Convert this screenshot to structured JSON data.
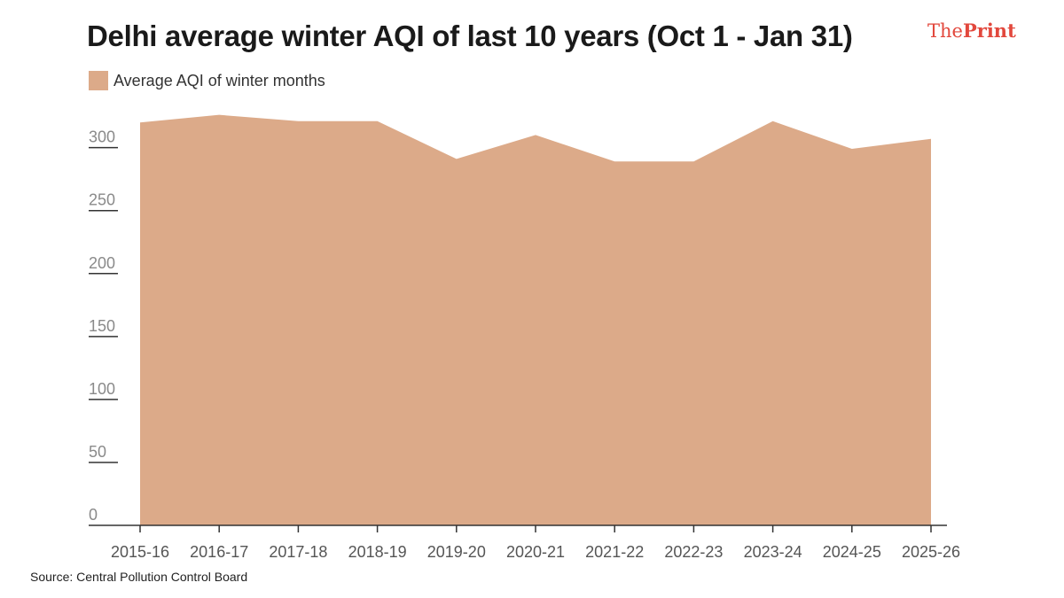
{
  "header": {
    "title": "Delhi average winter AQI of last 10 years (Oct 1 - Jan 31)",
    "logo_part1": "The",
    "logo_part2": "Print"
  },
  "footer": {
    "source": "Source: Central Pollution Control Board"
  },
  "colors": {
    "area_fill": "#dcaa89",
    "logo": "#e2483d",
    "axis": "#333333"
  },
  "chart_data": {
    "type": "area",
    "title": "Delhi average winter AQI of last 10 years (Oct 1 - Jan 31)",
    "xlabel": "",
    "ylabel": "",
    "categories": [
      "2015-16",
      "2016-17",
      "2017-18",
      "2018-19",
      "2019-20",
      "2020-21",
      "2021-22",
      "2022-23",
      "2023-24",
      "2024-25",
      "2025-26"
    ],
    "series": [
      {
        "name": "Average AQI of winter months",
        "values": [
          320,
          326,
          321,
          321,
          291,
          310,
          289,
          289,
          321,
          299,
          307
        ]
      }
    ],
    "ylim": [
      0,
      330
    ],
    "yticks": [
      0,
      50,
      100,
      150,
      200,
      250,
      300
    ],
    "legend": "top-left",
    "grid": false
  }
}
